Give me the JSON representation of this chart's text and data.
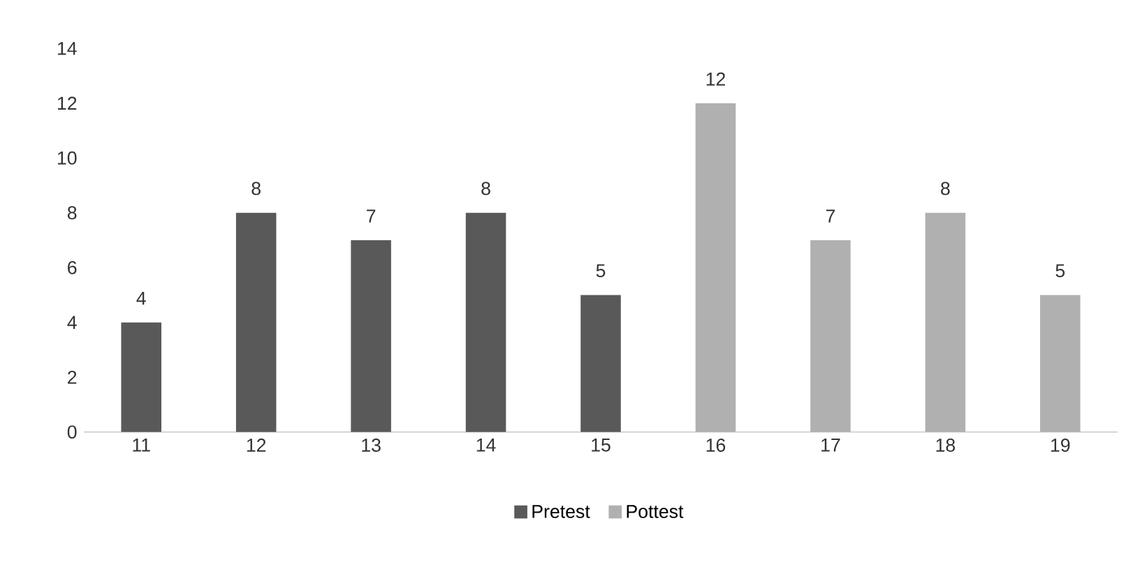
{
  "chart_data": {
    "type": "bar",
    "categories": [
      "11",
      "12",
      "13",
      "14",
      "15",
      "16",
      "17",
      "18",
      "19"
    ],
    "series": [
      {
        "name": "Pretest",
        "color": "#595959",
        "values": [
          4,
          8,
          7,
          8,
          5,
          null,
          null,
          null,
          null
        ]
      },
      {
        "name": "Pottest",
        "color": "#b0b0b0",
        "values": [
          null,
          null,
          null,
          null,
          null,
          12,
          7,
          8,
          5
        ]
      }
    ],
    "ylim": [
      0,
      14
    ],
    "yticks": [
      0,
      2,
      4,
      6,
      8,
      10,
      12,
      14
    ],
    "data_labels": true,
    "grid": false,
    "legend": "bottom"
  }
}
